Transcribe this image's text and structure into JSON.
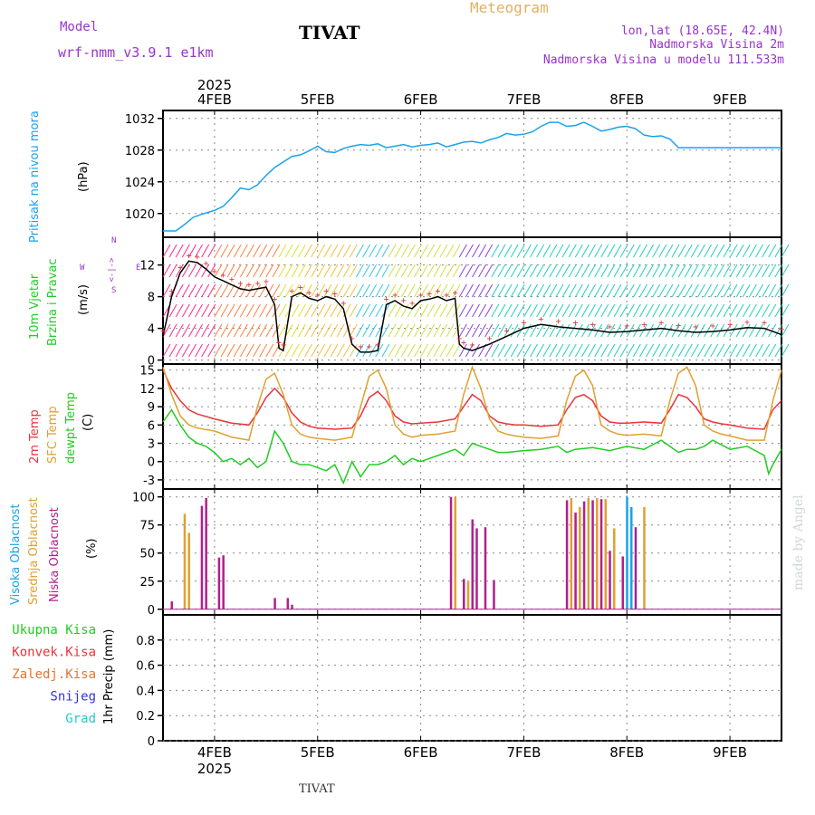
{
  "header": {
    "model_label": "Model",
    "model_name": "wrf-nmm_v3.9.1 e1km",
    "station_title": "TIVAT",
    "meteogram_label": "Meteogram",
    "coords": "lon,lat (18.65E, 42.4N)",
    "elevation": "Nadmorska Visina 2m",
    "model_elevation": "Nadmorska Visina u modelu 111.533m",
    "credit": "made by Angel",
    "footer_station": "TIVAT"
  },
  "colors": {
    "pressure": "#1aa3e8",
    "temp2m": "#e8343a",
    "sfc": "#e0a030",
    "dewpt": "#22cc22",
    "high_cloud": "#1aa3e8",
    "mid_cloud": "#e0a030",
    "low_cloud": "#b0208a",
    "wind_line": "#000000",
    "gust": "#e8343a",
    "title": "#9933cc"
  },
  "chart_data": [
    {
      "type": "line",
      "id": "pressure",
      "ylabel_left": "Pritisak na nivou mora",
      "ylabel_unit": "(hPa)",
      "x_unit": "hours from 2025-02-03 12 UTC",
      "xlim": [
        0,
        144
      ],
      "ylim": [
        1017,
        1033
      ],
      "yticks": [
        1020,
        1024,
        1028,
        1032
      ],
      "grid": true,
      "x_ticks_top": [
        "4FEB",
        "5FEB",
        "6FEB",
        "7FEB",
        "8FEB",
        "9FEB"
      ],
      "x_tick_hours": [
        12,
        36,
        60,
        84,
        108,
        132
      ],
      "year_label": "2025",
      "series": [
        {
          "color": "#1aa3e8",
          "x": [
            0,
            3,
            5,
            7,
            9,
            12,
            14,
            16,
            18,
            20,
            22,
            24,
            26,
            28,
            30,
            32,
            34,
            36,
            38,
            40,
            42,
            44,
            46,
            48,
            50,
            52,
            54,
            56,
            58,
            60,
            62,
            64,
            66,
            68,
            70,
            72,
            74,
            76,
            78,
            80,
            82,
            84,
            86,
            88,
            90,
            92,
            94,
            96,
            98,
            100,
            102,
            104,
            106,
            108,
            110,
            112,
            114,
            116,
            118,
            120,
            122,
            124,
            126,
            128,
            130,
            132,
            134,
            136,
            138,
            140,
            142,
            144
          ],
          "values": [
            1017.8,
            1017.8,
            1018.6,
            1019.5,
            1019.9,
            1020.4,
            1020.9,
            1022.0,
            1023.2,
            1023.0,
            1023.6,
            1024.8,
            1025.8,
            1026.5,
            1027.2,
            1027.4,
            1027.9,
            1028.5,
            1027.8,
            1027.7,
            1028.2,
            1028.5,
            1028.7,
            1028.6,
            1028.8,
            1028.3,
            1028.5,
            1028.7,
            1028.4,
            1028.6,
            1028.7,
            1028.9,
            1028.4,
            1028.7,
            1029.0,
            1029.1,
            1028.9,
            1029.3,
            1029.6,
            1030.1,
            1029.9,
            1030.0,
            1030.3,
            1031.0,
            1031.5,
            1031.5,
            1031.0,
            1031.1,
            1031.5,
            1031.0,
            1030.4,
            1030.6,
            1030.9,
            1031.0,
            1030.7,
            1029.9,
            1029.7,
            1029.8,
            1029.4,
            1028.3,
            1028.3,
            1028.3,
            1028.3,
            1028.3,
            1028.3,
            1028.3,
            1028.3,
            1028.3,
            1028.3,
            1028.3,
            1028.3,
            1028.3
          ]
        }
      ]
    },
    {
      "type": "line",
      "id": "wind",
      "ylabel_left_1": "10m Vjetar",
      "ylabel_left_2": "Brzina i Pravac",
      "ylabel_unit": "(m/s)",
      "compass": {
        "n": "N",
        "s": "S",
        "w": "W",
        "e": "E",
        "arrow": "<-|->"
      },
      "xlim": [
        0,
        144
      ],
      "ylim": [
        -0.5,
        15.5
      ],
      "yticks": [
        0,
        4,
        8,
        12
      ],
      "grid": true,
      "series": [
        {
          "name": "speed",
          "color": "#000000",
          "x": [
            0,
            2,
            4,
            6,
            8,
            10,
            12,
            14,
            16,
            18,
            20,
            22,
            24,
            26,
            27,
            28,
            30,
            32,
            34,
            36,
            38,
            40,
            42,
            44,
            46,
            48,
            50,
            52,
            54,
            56,
            58,
            60,
            62,
            64,
            66,
            68,
            69,
            70,
            72,
            76,
            80,
            84,
            88,
            92,
            96,
            100,
            104,
            108,
            112,
            116,
            120,
            124,
            128,
            132,
            136,
            140,
            144
          ],
          "values": [
            3,
            8,
            11,
            12.5,
            12.3,
            11.5,
            10.5,
            10,
            9.5,
            9,
            8.8,
            9,
            9.2,
            7,
            1.5,
            1.2,
            8,
            8.5,
            7.8,
            7.5,
            8,
            7.7,
            6.5,
            2,
            1,
            1,
            1.2,
            7,
            7.5,
            6.8,
            6.5,
            7.5,
            7.7,
            8,
            7.5,
            7.8,
            2,
            1.5,
            1.2,
            2,
            3,
            4,
            4.5,
            4.2,
            4,
            3.8,
            3.5,
            3.6,
            3.8,
            4,
            3.7,
            3.5,
            3.6,
            3.8,
            4.1,
            4,
            3.2
          ]
        }
      ],
      "gust_markers": "x symbols along series"
    },
    {
      "type": "line",
      "id": "temperature",
      "ylabel_left_1": "2m Temp",
      "ylabel_left_2": "SFC Temp",
      "ylabel_left_3": "dewpt Temp",
      "ylabel_unit": "(C)",
      "xlim": [
        0,
        144
      ],
      "ylim": [
        -4.5,
        16
      ],
      "yticks": [
        -3,
        0,
        3,
        6,
        9,
        12,
        15
      ],
      "grid": true,
      "series": [
        {
          "name": "2m Temp",
          "color": "#e8343a",
          "x": [
            0,
            2,
            4,
            6,
            8,
            12,
            16,
            20,
            22,
            24,
            26,
            28,
            30,
            32,
            34,
            36,
            40,
            44,
            46,
            48,
            50,
            52,
            54,
            56,
            58,
            60,
            64,
            68,
            70,
            72,
            74,
            76,
            78,
            80,
            82,
            84,
            88,
            92,
            94,
            96,
            98,
            100,
            102,
            104,
            106,
            108,
            112,
            116,
            118,
            120,
            122,
            124,
            126,
            128,
            130,
            132,
            136,
            140,
            142,
            144
          ],
          "values": [
            15,
            12,
            10,
            8.5,
            7.8,
            7,
            6.3,
            6,
            8,
            10.5,
            12,
            10.5,
            8,
            6.5,
            5.8,
            5.5,
            5.3,
            5.5,
            7.5,
            10.5,
            11.5,
            10,
            7.5,
            6.5,
            6.2,
            6.3,
            6.5,
            7,
            9,
            11,
            10,
            7.5,
            6.5,
            6.2,
            6,
            6,
            5.8,
            6,
            8.5,
            10.5,
            11,
            10,
            7.5,
            6.5,
            6.3,
            6.3,
            6.5,
            6.3,
            8.5,
            11,
            10.5,
            9,
            7,
            6.5,
            6.2,
            6,
            5.5,
            5.3,
            8.5,
            10
          ]
        },
        {
          "name": "SFC Temp",
          "color": "#e0a030",
          "x": [
            0,
            2,
            4,
            6,
            8,
            12,
            16,
            20,
            22,
            24,
            26,
            28,
            30,
            32,
            34,
            36,
            40,
            44,
            46,
            48,
            50,
            52,
            54,
            56,
            58,
            60,
            64,
            68,
            70,
            72,
            74,
            76,
            78,
            80,
            82,
            84,
            88,
            92,
            94,
            96,
            98,
            100,
            102,
            104,
            106,
            108,
            112,
            116,
            118,
            120,
            122,
            124,
            126,
            128,
            130,
            132,
            136,
            140,
            142,
            144
          ],
          "values": [
            15.5,
            11,
            7.5,
            6,
            5.5,
            5,
            4,
            3.5,
            9,
            13.5,
            14.5,
            11,
            6,
            4.5,
            4,
            3.8,
            3.5,
            4,
            9,
            14,
            15,
            12,
            6,
            4.5,
            4,
            4.3,
            4.5,
            5,
            11,
            15.5,
            12,
            7,
            5,
            4.5,
            4.2,
            4,
            3.8,
            4.2,
            10,
            14,
            15,
            12.5,
            6,
            5,
            4.5,
            4.3,
            4.5,
            4.2,
            10,
            14.5,
            15.5,
            12.5,
            6,
            5,
            4.5,
            4.2,
            3.5,
            3.5,
            10,
            15
          ]
        },
        {
          "name": "dewpt Temp",
          "color": "#22cc22",
          "x": [
            0,
            2,
            4,
            6,
            8,
            10,
            12,
            14,
            16,
            18,
            20,
            22,
            24,
            26,
            28,
            30,
            32,
            34,
            36,
            38,
            40,
            42,
            44,
            46,
            48,
            50,
            52,
            54,
            56,
            58,
            60,
            62,
            64,
            66,
            68,
            70,
            72,
            74,
            76,
            78,
            80,
            84,
            88,
            92,
            94,
            96,
            100,
            104,
            108,
            112,
            116,
            118,
            120,
            122,
            124,
            126,
            128,
            132,
            136,
            140,
            141,
            142,
            144
          ],
          "values": [
            6.5,
            8.5,
            6,
            4,
            3,
            2.5,
            1.5,
            0,
            0.5,
            -0.5,
            0.5,
            -1,
            0,
            5,
            3,
            0,
            -0.5,
            -0.5,
            -1,
            -1.5,
            -0.5,
            -3.5,
            0,
            -2.5,
            -0.5,
            -0.5,
            0,
            1,
            -0.5,
            0.5,
            0,
            0.5,
            1,
            1.5,
            2,
            1,
            3,
            2.5,
            2,
            1.5,
            1.5,
            1.8,
            2,
            2.5,
            1.5,
            2,
            2.3,
            1.8,
            2.5,
            2,
            3.5,
            2.5,
            1.5,
            2,
            2,
            2.5,
            3.5,
            2,
            2.5,
            1,
            -2,
            -0.5,
            2
          ]
        }
      ]
    },
    {
      "type": "bar",
      "id": "clouds",
      "ylabel_left_1": "Visoka Oblacnost",
      "ylabel_left_2": "Srednja Oblacnost",
      "ylabel_left_3": "Niska Oblacnost",
      "ylabel_unit": "(%)",
      "xlim": [
        0,
        144
      ],
      "ylim": [
        -5,
        107
      ],
      "yticks": [
        0,
        25,
        50,
        75,
        100
      ],
      "grid": true,
      "series": [
        {
          "name": "Niska Oblacnost",
          "color": "#b0208a",
          "x": [
            2,
            9,
            10,
            13,
            14,
            26,
            29,
            30,
            67,
            70,
            72,
            73,
            75,
            77,
            94,
            96,
            98,
            100,
            102,
            104,
            107,
            110
          ],
          "values": [
            7,
            92,
            99,
            46,
            48,
            10,
            10,
            4,
            100,
            27,
            80,
            72,
            73,
            26,
            97,
            86,
            96,
            97,
            98,
            52,
            47,
            73
          ]
        },
        {
          "name": "Srednja Oblacnost",
          "color": "#e0a030",
          "x": [
            5,
            6,
            68,
            71,
            95,
            97,
            99,
            101,
            103,
            105,
            112
          ],
          "values": [
            85,
            68,
            100,
            25,
            99,
            91,
            99,
            99,
            98,
            72,
            91
          ]
        },
        {
          "name": "Visoka Oblacnost",
          "color": "#1aa3e8",
          "x": [
            108,
            109
          ],
          "values": [
            100,
            91
          ]
        }
      ]
    },
    {
      "type": "bar",
      "id": "precip",
      "ylabel_unit": "1hr Precip (mm)",
      "legend": [
        {
          "label": "Ukupna Kisa",
          "color": "#22cc22"
        },
        {
          "label": "Konvek.Kisa",
          "color": "#e8343a"
        },
        {
          "label": "Zaledj.Kisa",
          "color": "#e8742a"
        },
        {
          "label": "Snijeg",
          "color": "#3333dd"
        },
        {
          "label": "Grad",
          "color": "#22cccc"
        }
      ],
      "xlim": [
        0,
        144
      ],
      "ylim": [
        0,
        1.0
      ],
      "yticks": [
        0,
        0.2,
        0.4,
        0.6,
        0.8
      ],
      "grid": true,
      "x_ticks_bottom": [
        "4FEB",
        "5FEB",
        "6FEB",
        "7FEB",
        "8FEB",
        "9FEB"
      ],
      "year_label": "2025",
      "series": []
    }
  ]
}
